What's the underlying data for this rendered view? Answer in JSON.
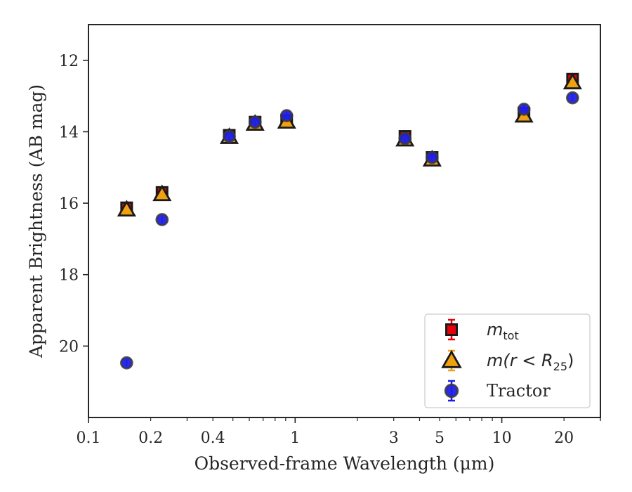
{
  "chart_data": {
    "type": "scatter",
    "xlabel": "Observed-frame Wavelength (μm)",
    "ylabel": "Apparent Brightness (AB mag)",
    "xscale": "log",
    "xlim": [
      0.1,
      30
    ],
    "ylim": [
      22,
      11
    ],
    "y_inverted": true,
    "grid": false,
    "legend_position": "lower-right",
    "x_ticks": [
      {
        "value": 0.1,
        "label": "0.1"
      },
      {
        "value": 0.2,
        "label": "0.2"
      },
      {
        "value": 0.4,
        "label": "0.4"
      },
      {
        "value": 1,
        "label": "1"
      },
      {
        "value": 3,
        "label": "3"
      },
      {
        "value": 5,
        "label": "5"
      },
      {
        "value": 10,
        "label": "10"
      },
      {
        "value": 20,
        "label": "20"
      }
    ],
    "y_ticks": [
      {
        "value": 12,
        "label": "12"
      },
      {
        "value": 14,
        "label": "14"
      },
      {
        "value": 16,
        "label": "16"
      },
      {
        "value": 18,
        "label": "18"
      },
      {
        "value": 20,
        "label": "20"
      }
    ],
    "series": [
      {
        "name": "m_tot",
        "legend_main": "m",
        "legend_sub": "tot",
        "marker": "square",
        "color": "#e8000b",
        "points": [
          {
            "x": 0.153,
            "y": 16.13
          },
          {
            "x": 0.227,
            "y": 15.7
          },
          {
            "x": 0.48,
            "y": 14.1
          },
          {
            "x": 0.64,
            "y": 13.73
          },
          {
            "x": 0.91,
            "y": 13.68
          },
          {
            "x": 3.4,
            "y": 14.13
          },
          {
            "x": 4.6,
            "y": 14.72
          },
          {
            "x": 12.8,
            "y": 13.48
          },
          {
            "x": 22.0,
            "y": 12.53
          }
        ]
      },
      {
        "name": "m(r<R25)",
        "legend_main": "m(r < R",
        "legend_sub": "25",
        "legend_close": ")",
        "marker": "triangle",
        "color": "#f1a10f",
        "points": [
          {
            "x": 0.153,
            "y": 16.18
          },
          {
            "x": 0.227,
            "y": 15.75
          },
          {
            "x": 0.48,
            "y": 14.15
          },
          {
            "x": 0.64,
            "y": 13.78
          },
          {
            "x": 0.91,
            "y": 13.72
          },
          {
            "x": 3.4,
            "y": 14.22
          },
          {
            "x": 4.6,
            "y": 14.78
          },
          {
            "x": 12.8,
            "y": 13.55
          },
          {
            "x": 22.0,
            "y": 12.62
          }
        ]
      },
      {
        "name": "Tractor",
        "legend_main": "Tractor",
        "marker": "circle",
        "color": "#1f1fe6",
        "points": [
          {
            "x": 0.153,
            "y": 20.47
          },
          {
            "x": 0.227,
            "y": 16.46
          },
          {
            "x": 0.48,
            "y": 14.13
          },
          {
            "x": 0.64,
            "y": 13.73
          },
          {
            "x": 0.91,
            "y": 13.55
          },
          {
            "x": 3.4,
            "y": 14.19
          },
          {
            "x": 4.6,
            "y": 14.72
          },
          {
            "x": 12.8,
            "y": 13.37
          },
          {
            "x": 22.0,
            "y": 13.05
          }
        ]
      }
    ]
  }
}
